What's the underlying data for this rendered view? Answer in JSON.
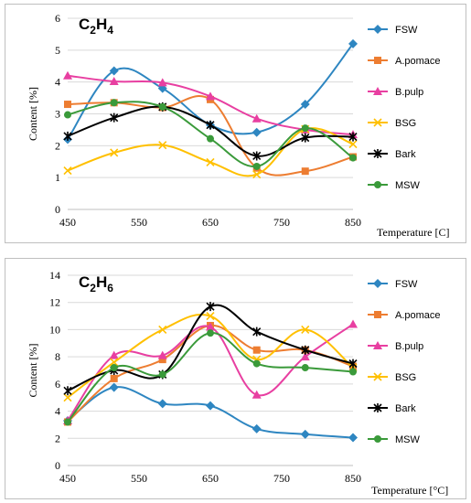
{
  "chart_data": [
    {
      "type": "line",
      "title_main": "C",
      "title_parts": [
        "2",
        "H",
        "4"
      ],
      "xlabel": "Temperature [C]",
      "ylabel": "Content [%]",
      "x": [
        450,
        515,
        583,
        650,
        715,
        783,
        850
      ],
      "xticks": [
        "450",
        "550",
        "650",
        "750",
        "850"
      ],
      "ylim": [
        0,
        6
      ],
      "yticks": [
        "0",
        "1",
        "2",
        "3",
        "4",
        "5",
        "6"
      ],
      "grid": true,
      "legend_placement": "right",
      "series": [
        {
          "name": "FSW",
          "color": "#2e86c1",
          "marker": "diamond",
          "values": [
            2.2,
            4.35,
            3.8,
            2.65,
            2.42,
            3.3,
            5.2
          ]
        },
        {
          "name": "A.pomace",
          "color": "#ed7d31",
          "marker": "square",
          "values": [
            3.3,
            3.35,
            3.2,
            3.45,
            1.3,
            1.2,
            1.65
          ]
        },
        {
          "name": "B.pulp",
          "color": "#e83fa1",
          "marker": "triangle",
          "values": [
            4.2,
            4.02,
            3.98,
            3.55,
            2.85,
            2.5,
            2.35
          ]
        },
        {
          "name": "BSG",
          "color": "#ffc000",
          "marker": "x",
          "values": [
            1.22,
            1.78,
            2.02,
            1.48,
            1.1,
            2.52,
            2.05
          ]
        },
        {
          "name": "Bark",
          "color": "#000000",
          "marker": "star",
          "values": [
            2.3,
            2.88,
            3.22,
            2.65,
            1.68,
            2.25,
            2.28
          ]
        },
        {
          "name": "MSW",
          "color": "#3a9a3a",
          "marker": "circle",
          "values": [
            2.97,
            3.35,
            3.22,
            2.22,
            1.35,
            2.55,
            1.62
          ]
        }
      ]
    },
    {
      "type": "line",
      "title_main": "C",
      "title_parts": [
        "2",
        "H",
        "6"
      ],
      "xlabel": "Temperature [°C]",
      "ylabel": "Content [%]",
      "x": [
        450,
        515,
        583,
        650,
        715,
        783,
        850
      ],
      "xticks": [
        "450",
        "550",
        "650",
        "750",
        "850"
      ],
      "ylim": [
        0,
        14
      ],
      "yticks": [
        "0",
        "2",
        "4",
        "6",
        "8",
        "10",
        "12",
        "14"
      ],
      "grid": true,
      "legend_placement": "right",
      "series": [
        {
          "name": "FSW",
          "color": "#2e86c1",
          "marker": "diamond",
          "values": [
            3.3,
            5.75,
            4.55,
            4.4,
            2.7,
            2.3,
            2.05
          ]
        },
        {
          "name": "A.pomace",
          "color": "#ed7d31",
          "marker": "square",
          "values": [
            3.2,
            6.4,
            7.8,
            10.3,
            8.5,
            8.5,
            7.3
          ]
        },
        {
          "name": "B.pulp",
          "color": "#e83fa1",
          "marker": "triangle",
          "values": [
            3.3,
            8.1,
            8.1,
            10.2,
            5.2,
            8.0,
            10.4
          ]
        },
        {
          "name": "BSG",
          "color": "#ffc000",
          "marker": "x",
          "values": [
            5.0,
            7.6,
            10.0,
            11.0,
            7.8,
            10.0,
            7.2
          ]
        },
        {
          "name": "Bark",
          "color": "#000000",
          "marker": "star",
          "values": [
            5.5,
            7.0,
            6.7,
            11.7,
            9.85,
            8.5,
            7.5
          ]
        },
        {
          "name": "MSW",
          "color": "#3a9a3a",
          "marker": "circle",
          "values": [
            3.2,
            7.2,
            6.7,
            9.75,
            7.5,
            7.2,
            6.9
          ]
        }
      ]
    }
  ]
}
